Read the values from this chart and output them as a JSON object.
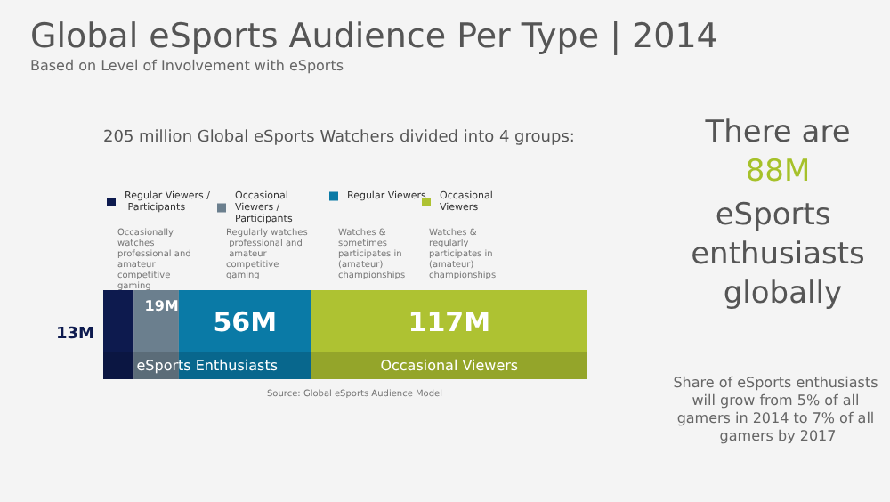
{
  "chart_data": {
    "type": "bar",
    "orientation": "horizontal",
    "stacked": true,
    "title": "Global eSports Audience Per Type | 2014",
    "subtitle": "Based on Level of Involvement with eSports",
    "categories": [
      null
    ],
    "series": [
      {
        "name": "Regular Viewers / Participants",
        "color": "#0d1a4e",
        "values": [
          13
        ],
        "value_labels": [
          "13M"
        ]
      },
      {
        "name": "Occasional Viewers / Participants",
        "color": "#6b7f8e",
        "values": [
          19
        ],
        "value_labels": [
          "19M"
        ]
      },
      {
        "name": "Regular Viewers",
        "color": "#0a7aa6",
        "values": [
          56
        ],
        "value_labels": [
          "56M"
        ]
      },
      {
        "name": "Occasional Viewers",
        "color": "#aec232",
        "values": [
          117
        ],
        "value_labels": [
          "117M"
        ]
      }
    ],
    "bands": [
      {
        "axis": "x",
        "from": 0,
        "to": 88,
        "label": "eSports Enthusiasts"
      },
      {
        "axis": "x",
        "from": 88,
        "to": 205,
        "label": "Occasional Viewers"
      }
    ],
    "legend": "top",
    "annotations": [
      "205 million Global eSports Watchers divided into 4 groups:",
      "Occasionally watches professional and amateur competitive gaming",
      "Regularly watches professional and amateur competitive gaming",
      "Watches & sometimes participates in (amateur) championships",
      "Watches & regularly participates in (amateur) championships",
      "There are",
      "88M",
      "eSports enthusiasts globally",
      "Share of eSports enthusiasts will grow from 5% of all gamers in 2014 to 7% of all gamers by 2017",
      "Source: Global eSports Audience Model"
    ]
  }
}
